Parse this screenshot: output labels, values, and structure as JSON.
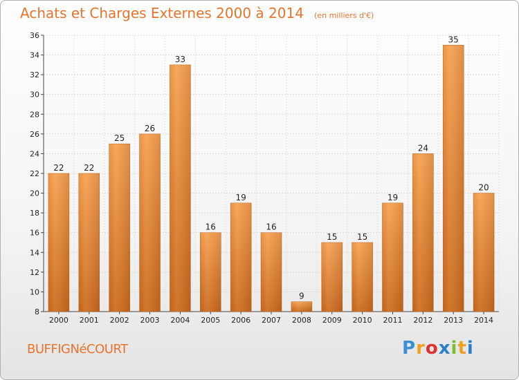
{
  "header": {
    "title": "Achats et Charges Externes 2000 à 2014",
    "subtitle": "(en milliers d'€)"
  },
  "commune": "BUFFIGNéCOURT",
  "logo": {
    "letters": [
      "P",
      "r",
      "o",
      "x",
      "i",
      "t",
      "i"
    ],
    "colors": [
      "#3b8fd4",
      "#f0a020",
      "#e03030",
      "#2b7fc9",
      "#7cbf2a",
      "#f0a020",
      "#2b7fc9"
    ]
  },
  "chart_data": {
    "type": "bar",
    "categories": [
      "2000",
      "2001",
      "2002",
      "2003",
      "2004",
      "2005",
      "2006",
      "2007",
      "2008",
      "2009",
      "2010",
      "2011",
      "2012",
      "2013",
      "2014"
    ],
    "values": [
      22,
      22,
      25,
      26,
      33,
      16,
      19,
      16,
      9,
      15,
      15,
      19,
      24,
      35,
      20
    ],
    "title": "Achats et Charges Externes 2000 à 2014",
    "subtitle": "(en milliers d'€)",
    "ylim": [
      8,
      36
    ],
    "yticks": [
      8,
      10,
      12,
      14,
      16,
      18,
      20,
      22,
      24,
      26,
      28,
      30,
      32,
      34,
      36
    ],
    "grid": true,
    "bar_color_top": "#f7a04e",
    "bar_color_bottom": "#cc6a1c"
  }
}
